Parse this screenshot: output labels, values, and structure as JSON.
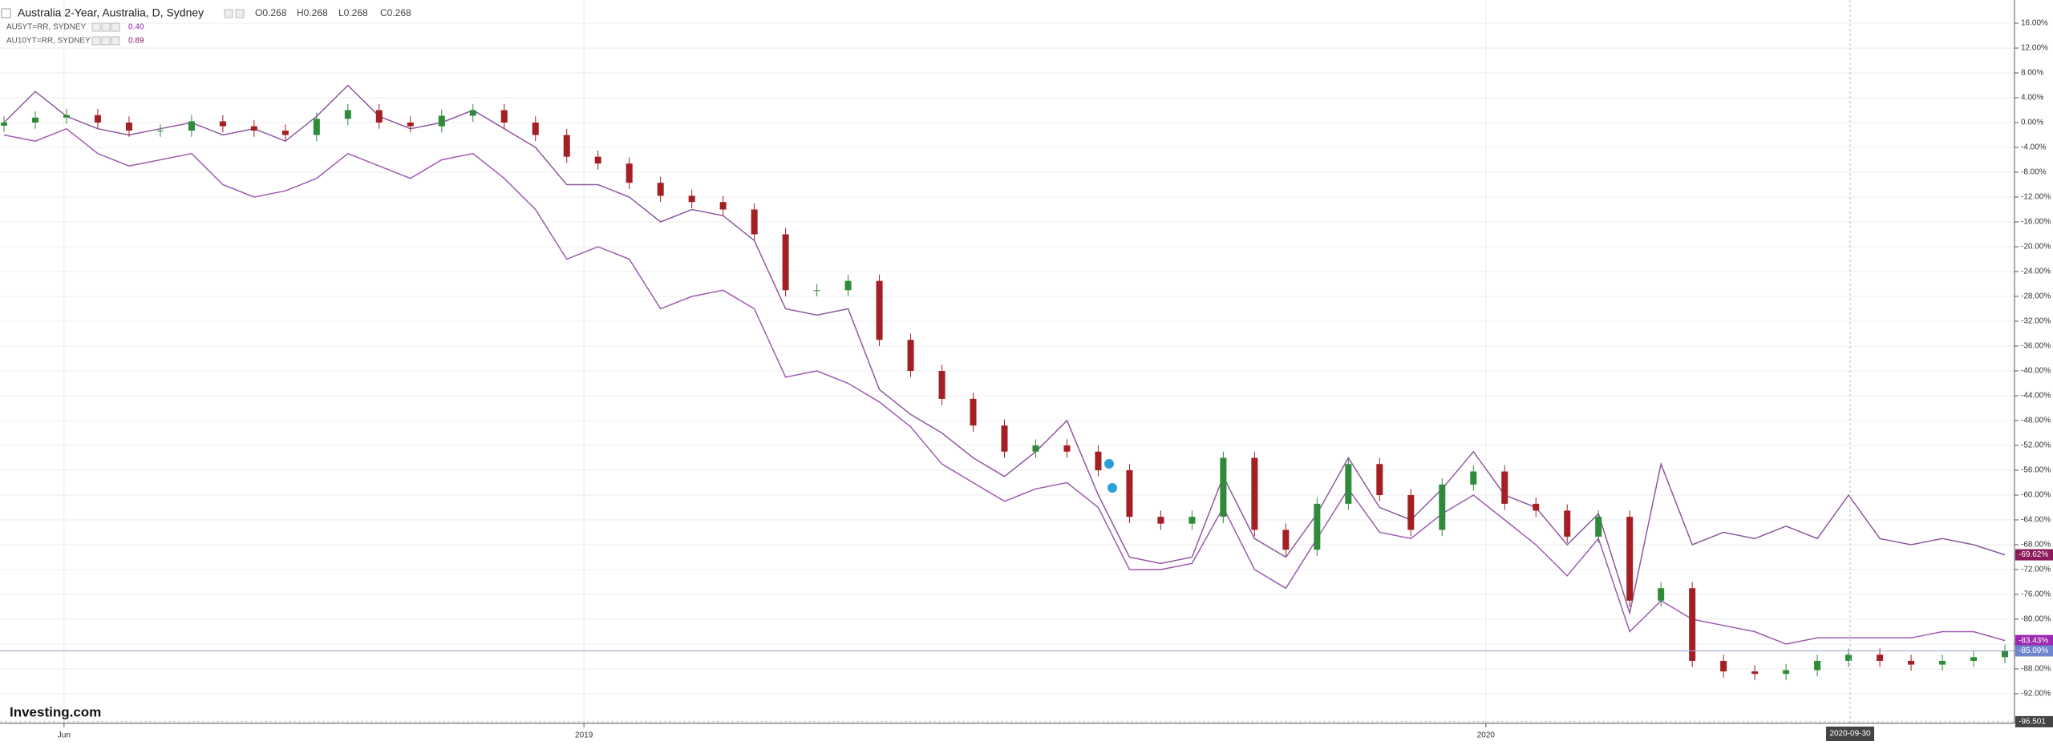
{
  "chart_data": {
    "type": "candlestick",
    "title": "Australia 2-Year, Australia, D, Sydney",
    "ohlc_readout": [
      "O0.268",
      "H0.268",
      "L0.268",
      "C0.268"
    ],
    "logo": "Investing.com",
    "xlim": [
      0,
      64
    ],
    "xticks": [
      {
        "value": 1.92,
        "label": "Jun"
      },
      {
        "value": 18.55,
        "label": "2019"
      },
      {
        "value": 47.4,
        "label": "2020"
      }
    ],
    "ylim": [
      -96.77,
      19.74
    ],
    "yticks": [
      {
        "value": 16,
        "label": "16.00%"
      },
      {
        "value": 12,
        "label": "12.00%"
      },
      {
        "value": 8,
        "label": "8.00%"
      },
      {
        "value": 4,
        "label": "4.00%"
      },
      {
        "value": 0,
        "label": "0.00%"
      },
      {
        "value": -4,
        "label": "-4.00%"
      },
      {
        "value": -8,
        "label": "-8.00%"
      },
      {
        "value": -12,
        "label": "-12.00%"
      },
      {
        "value": -16,
        "label": "-16.00%"
      },
      {
        "value": -20,
        "label": "-20.00%"
      },
      {
        "value": -24,
        "label": "-24.00%"
      },
      {
        "value": -28,
        "label": "-28.00%"
      },
      {
        "value": -32,
        "label": "-32.00%"
      },
      {
        "value": -36,
        "label": "-36.00%"
      },
      {
        "value": -40,
        "label": "-40.00%"
      },
      {
        "value": -44,
        "label": "-44.00%"
      },
      {
        "value": -48,
        "label": "-48.00%"
      },
      {
        "value": -52,
        "label": "-52.00%"
      },
      {
        "value": -56,
        "label": "-56.00%"
      },
      {
        "value": -60,
        "label": "-60.00%"
      },
      {
        "value": -64,
        "label": "-64.00%"
      },
      {
        "value": -68,
        "label": "-68.00%"
      },
      {
        "value": -72,
        "label": "-72.00%"
      },
      {
        "value": -76,
        "label": "-76.00%"
      },
      {
        "value": -80,
        "label": "-80.00%"
      },
      {
        "value": -84,
        "label": "-84.00%"
      },
      {
        "value": -88,
        "label": "-88.00%"
      },
      {
        "value": -92,
        "label": "-92.00%"
      }
    ],
    "grid": true,
    "crosshair": {
      "x": 59.05,
      "x_label": "2020-09-30",
      "y": -96.501
    },
    "candles": {
      "up_color": "#2e8b3a",
      "down_color": "#a31f24",
      "last_color": "#6f86cf",
      "last_label": "-85.09%",
      "open": [
        -0.5,
        0,
        0.8,
        1.2,
        0,
        -1.3,
        -1.3,
        0.2,
        -0.6,
        -1.3,
        -2,
        0.6,
        2,
        0,
        -0.6,
        1.1,
        2,
        0,
        -2,
        -5.5,
        -6.6,
        -9.7,
        -11.8,
        -12.8,
        -14,
        -18,
        -27,
        -27,
        -25.5,
        -35,
        -40,
        -44.5,
        -48.8,
        -53,
        -52,
        -53,
        -56,
        -63.5,
        -64.6,
        -63.5,
        -54,
        -65.6,
        -68.8,
        -61.4,
        -55,
        -60,
        -65.6,
        -58.3,
        -56.2,
        -61.4,
        -62.5,
        -66.7,
        -63.5,
        -77,
        -75,
        -86.7,
        -88.4,
        -88.8,
        -88.2,
        -86.7,
        -85.7,
        -86.7,
        -87.3,
        -86.7,
        -86.1
      ],
      "high": [
        1,
        1.8,
        2.2,
        2.2,
        1,
        -0.3,
        1.2,
        1.2,
        0.4,
        -0.3,
        1.6,
        3,
        3,
        1,
        2.1,
        3,
        3,
        1,
        -1,
        -4.5,
        -5.6,
        -8.7,
        -10.8,
        -11.8,
        -13,
        -17,
        -26,
        -24.5,
        -24.5,
        -34,
        -39,
        -43.5,
        -47.8,
        -51,
        -51,
        -52,
        -55,
        -62.5,
        -62.5,
        -53,
        -53,
        -64.6,
        -60.4,
        -54,
        -54,
        -59,
        -57.3,
        -55.2,
        -55.2,
        -60.4,
        -61.5,
        -62.5,
        -62.5,
        -74,
        -74,
        -85.7,
        -87.4,
        -87.2,
        -85.7,
        -84.7,
        -84.7,
        -85.7,
        -85.7,
        -85.1,
        -84.1
      ],
      "low": [
        -1.5,
        -1,
        -0.2,
        -1,
        -2.3,
        -2.3,
        -2.3,
        -1.6,
        -2.3,
        -3,
        -3,
        -0.4,
        -1,
        -1.6,
        -1.6,
        0.1,
        -1,
        -3,
        -6.5,
        -7.6,
        -10.7,
        -12.8,
        -13.8,
        -15,
        -19,
        -28,
        -28,
        -28,
        -36,
        -41,
        -45.5,
        -49.8,
        -54,
        -54,
        -54,
        -57,
        -64.5,
        -65.6,
        -65.6,
        -64.5,
        -66.6,
        -69.8,
        -69.8,
        -62.4,
        -61,
        -66.6,
        -66.6,
        -59.3,
        -62.4,
        -63.5,
        -67.7,
        -67.7,
        -78,
        -78,
        -87.7,
        -89.4,
        -89.8,
        -89.8,
        -89.2,
        -87.7,
        -87.7,
        -88.3,
        -88.3,
        -87.7,
        -87.1
      ],
      "close": [
        0,
        0.8,
        1.2,
        0,
        -1.3,
        -1.3,
        0.2,
        -0.6,
        -1.3,
        -2,
        0.6,
        2,
        0,
        -0.6,
        1.1,
        2,
        0,
        -2,
        -5.5,
        -6.6,
        -9.7,
        -11.8,
        -12.8,
        -14,
        -18,
        -27,
        -27,
        -25.5,
        -35,
        -40,
        -44.5,
        -48.8,
        -53,
        -52,
        -53,
        -56,
        -63.5,
        -64.6,
        -63.5,
        -54,
        -65.6,
        -68.8,
        -61.4,
        -55,
        -60,
        -65.6,
        -58.3,
        -56.2,
        -61.4,
        -62.5,
        -66.7,
        -63.5,
        -77,
        -75,
        -86.7,
        -88.4,
        -88.8,
        -88.2,
        -86.7,
        -85.7,
        -86.7,
        -87.3,
        -86.7,
        -86.1,
        -85.09
      ]
    },
    "series": [
      {
        "name": "AU5YT=RR, SYDNEY",
        "legend_value": "0.40",
        "color": "#9c5cb0",
        "label_color": "#9c27b0",
        "last_label": "-83.43%",
        "values": [
          -2,
          -3,
          -1,
          -5,
          -7,
          -6,
          -5,
          -10,
          -12,
          -11,
          -9,
          -5,
          -7,
          -9,
          -6,
          -5,
          -9,
          -14,
          -22,
          -20,
          -22,
          -30,
          -28,
          -27,
          -30,
          -41,
          -40,
          -42,
          -45,
          -49,
          -55,
          -58,
          -61,
          -59,
          -58,
          -62,
          -72,
          -72,
          -71,
          -62,
          -72,
          -75,
          -67,
          -59,
          -66,
          -67,
          -63,
          -60,
          -64,
          -68,
          -73,
          -67,
          -82,
          -77,
          -80,
          -81,
          -82,
          -84,
          -83,
          -83,
          -83,
          -83,
          -82,
          -82,
          -83.43
        ]
      },
      {
        "name": "AU10YT=RR, SYDNEY",
        "legend_value": "0.89",
        "color": "#8e5a9e",
        "label_color": "#8b1a5a",
        "last_label": "-69.62%",
        "values": [
          0,
          5,
          1,
          -1,
          -2,
          -1,
          0,
          -2,
          -1,
          -3,
          1,
          6,
          1,
          -1,
          0,
          2,
          -1,
          -4,
          -10,
          -10,
          -12,
          -16,
          -14,
          -15,
          -19,
          -30,
          -31,
          -30,
          -43,
          -47,
          -50,
          -54,
          -57,
          -53,
          -48,
          -60,
          -70,
          -71,
          -70,
          -57,
          -67,
          -70,
          -63,
          -54,
          -62,
          -64,
          -59,
          -53,
          -60,
          -62,
          -68,
          -63,
          -79,
          -55,
          -68,
          -66,
          -67,
          -65,
          -67,
          -60,
          -67,
          -68,
          -67,
          -68,
          -69.62
        ]
      }
    ]
  }
}
